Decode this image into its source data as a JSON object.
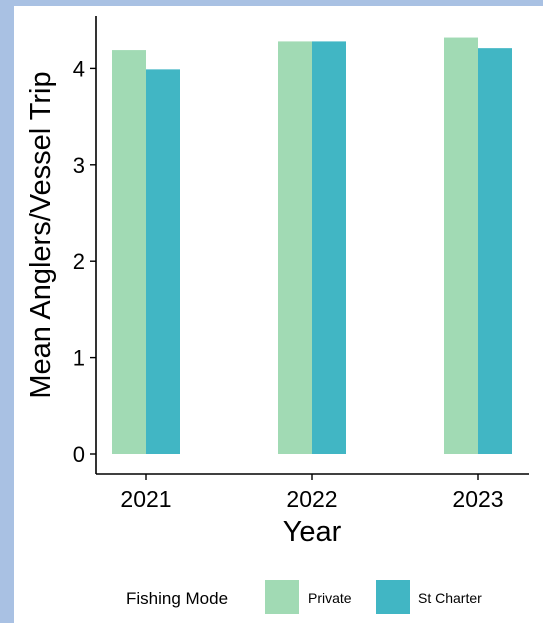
{
  "chart_data": {
    "type": "bar",
    "title": "",
    "xlabel": "Year",
    "ylabel": "Mean Anglers/Vessel Trip",
    "categories": [
      "2021",
      "2022",
      "2023"
    ],
    "series": [
      {
        "name": "Private",
        "values": [
          4.19,
          4.28,
          4.32
        ],
        "color": "#a1dab4"
      },
      {
        "name": "St Charter",
        "values": [
          3.99,
          4.28,
          4.21
        ],
        "color": "#41b6c4"
      }
    ],
    "ylim": [
      0,
      4.5
    ],
    "yticks": [
      0,
      1,
      2,
      3,
      4
    ],
    "grid": false,
    "legend": {
      "title": "Fishing Mode",
      "placement": "bottom"
    }
  }
}
